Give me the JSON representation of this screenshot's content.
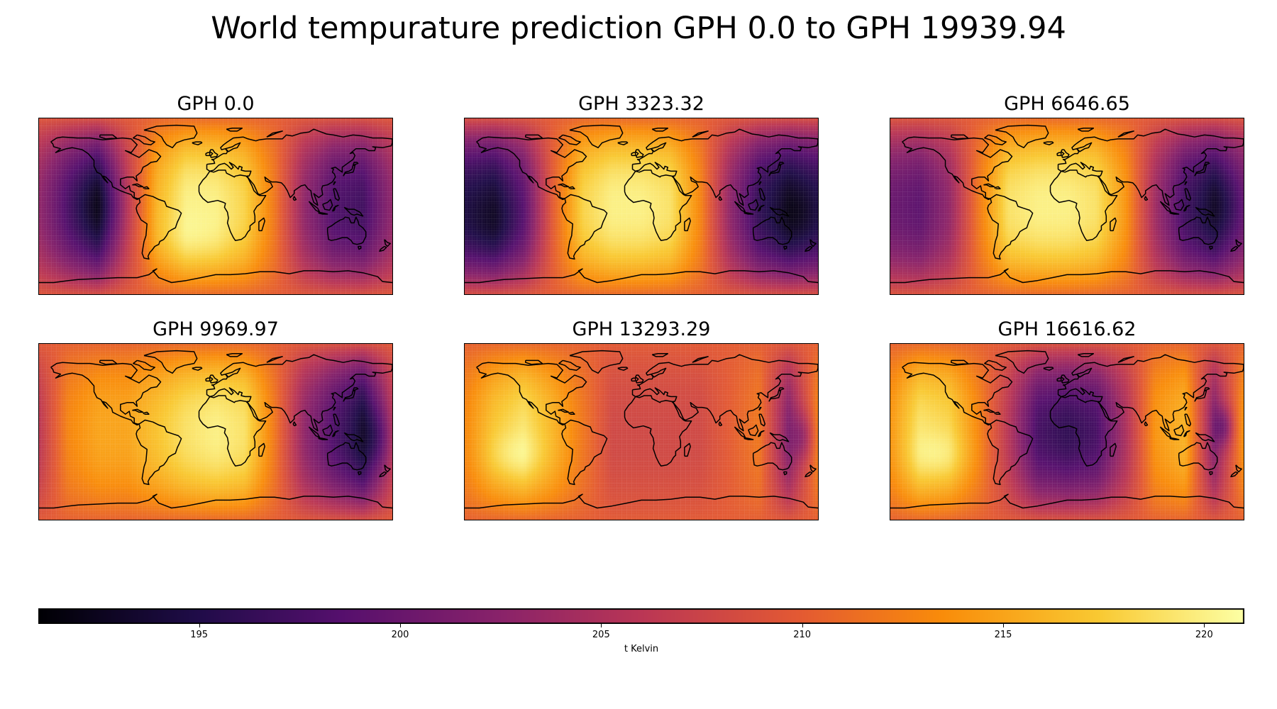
{
  "figure": {
    "title": "World tempurature prediction GPH 0.0 to GPH 19939.94"
  },
  "chart_data": {
    "type": "heatmap",
    "projection": "plate-carree world map with coastlines",
    "colormap": "inferno",
    "color_range_kelvin": [
      191,
      221
    ],
    "colorbar": {
      "label": "t Kelvin",
      "ticks": [
        195,
        200,
        205,
        210,
        215,
        220
      ],
      "placement": "bottom, horizontal"
    },
    "layout": {
      "rows": 2,
      "cols": 3
    },
    "panels": [
      {
        "title": "GPH 0.0",
        "gph": 0.0,
        "approx_temperature_by_longitude": {
          "longitude_deg": [
            -180,
            -150,
            -120,
            -90,
            -60,
            -30,
            0,
            30,
            60,
            90,
            120,
            150,
            180
          ],
          "kelvin": [
            203,
            198,
            194,
            206,
            216,
            220,
            220,
            218,
            212,
            203,
            198,
            197,
            203
          ]
        }
      },
      {
        "title": "GPH 3323.32",
        "gph": 3323.32,
        "approx_temperature_by_longitude": {
          "longitude_deg": [
            -180,
            -150,
            -120,
            -90,
            -60,
            -30,
            0,
            30,
            60,
            90,
            120,
            150,
            180
          ],
          "kelvin": [
            195,
            194,
            199,
            210,
            218,
            220,
            220,
            219,
            213,
            203,
            196,
            193,
            195
          ]
        }
      },
      {
        "title": "GPH 6646.65",
        "gph": 6646.65,
        "approx_temperature_by_longitude": {
          "longitude_deg": [
            -180,
            -150,
            -120,
            -90,
            -60,
            -30,
            0,
            30,
            60,
            90,
            120,
            150,
            180
          ],
          "kelvin": [
            200,
            199,
            203,
            212,
            219,
            220,
            220,
            219,
            214,
            204,
            197,
            194,
            200
          ]
        }
      },
      {
        "title": "GPH 9969.97",
        "gph": 9969.97,
        "approx_temperature_by_longitude": {
          "longitude_deg": [
            -180,
            -150,
            -120,
            -90,
            -60,
            -30,
            0,
            30,
            60,
            90,
            120,
            150,
            180
          ],
          "kelvin": [
            206,
            213,
            215,
            215,
            217,
            219,
            220,
            219,
            212,
            203,
            198,
            194,
            206
          ]
        }
      },
      {
        "title": "GPH 13293.29",
        "gph": 13293.29,
        "approx_temperature_by_longitude": {
          "longitude_deg": [
            -180,
            -150,
            -120,
            -90,
            -60,
            -30,
            0,
            30,
            60,
            90,
            120,
            150,
            180
          ],
          "kelvin": [
            213,
            217,
            219,
            216,
            212,
            208,
            208,
            208,
            208,
            210,
            212,
            202,
            213
          ]
        }
      },
      {
        "title": "GPH 16616.62",
        "gph": 16616.62,
        "approx_temperature_by_longitude": {
          "longitude_deg": [
            -180,
            -150,
            -120,
            -90,
            -60,
            -30,
            0,
            30,
            60,
            90,
            120,
            150,
            180
          ],
          "kelvin": [
            214,
            219,
            218,
            213,
            206,
            198,
            197,
            198,
            205,
            214,
            216,
            202,
            214
          ]
        }
      }
    ]
  }
}
